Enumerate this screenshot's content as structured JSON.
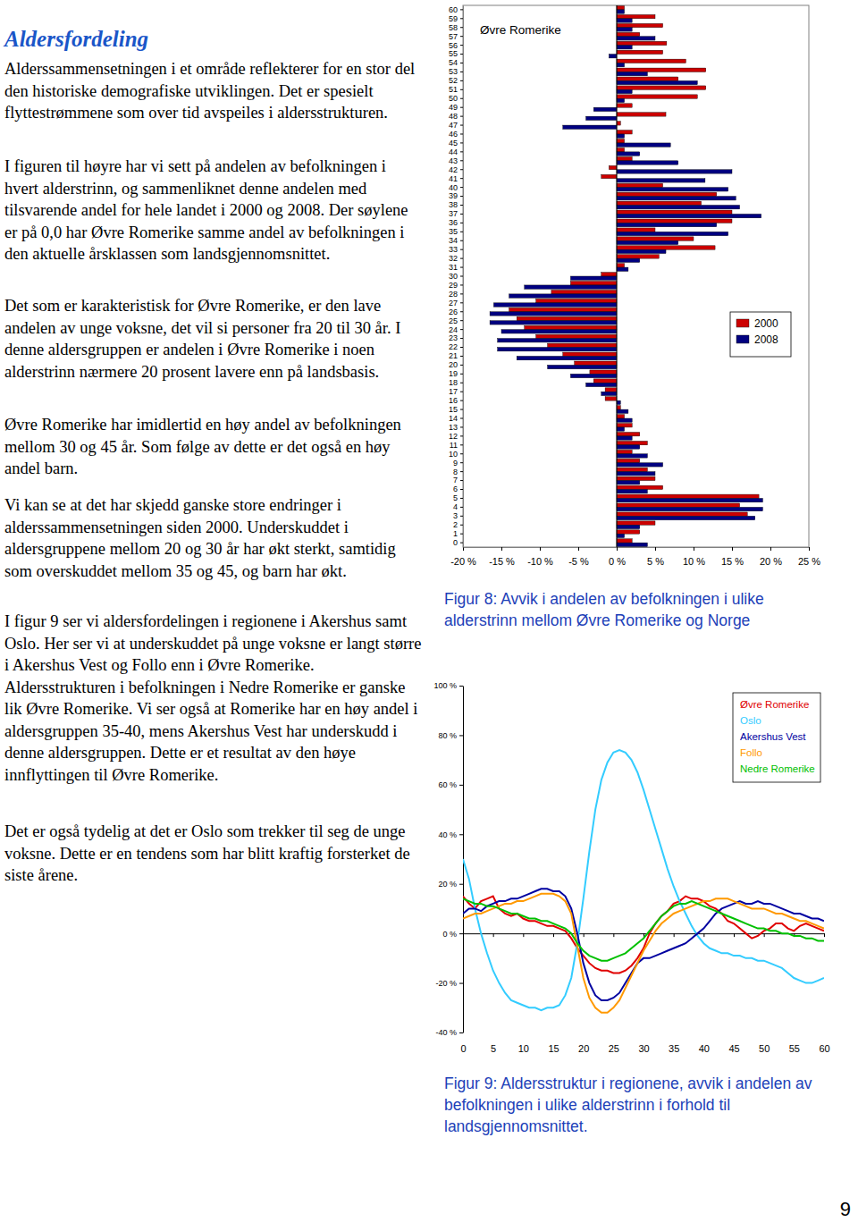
{
  "document": {
    "heading": "Aldersfordeling",
    "paragraphs": [
      "Alderssammensetningen i et område reflekterer for en stor del den historiske demografiske utviklingen. Det er spesielt flyttestrømmene som over tid avspeiles i aldersstrukturen.",
      "I figuren til høyre har vi sett på andelen av befolkningen i hvert alderstrinn, og sammenliknet denne andelen med tilsvarende andel for hele landet i 2000 og 2008. Der søylene er på 0,0 har Øvre Romerike samme andel av befolkningen i den aktuelle årsklassen som landsgjennomsnittet.",
      "Det som er karakteristisk for Øvre Romerike, er den lave andelen av unge voksne, det vil si personer fra 20 til 30 år. I denne aldersgruppen er andelen i Øvre Romerike i noen alderstrinn nærmere 20 prosent lavere enn på landsbasis.",
      "Øvre Romerike har imidlertid en høy andel av befolkningen mellom 30 og 45 år. Som følge av dette er det også en høy andel barn.",
      "Vi kan se at det har skjedd ganske store endringer i alderssammensetningen siden 2000. Underskuddet i aldersgruppene mellom 20 og 30 år har økt sterkt, samtidig som overskuddet mellom 35 og 45, og barn har økt.",
      "I figur 9 ser vi aldersfordelingen i regionene i Akershus samt Oslo. Her ser vi at underskuddet på unge voksne er langt større i Akershus Vest og Follo enn i Øvre Romerike. Aldersstrukturen i befolkningen i Nedre Romerike er ganske lik Øvre Romerike. Vi ser også at Romerike har en høy andel i aldersgruppen 35-40, mens Akershus Vest har underskudd i denne aldersgruppen. Dette er et resultat av den høye innflyttingen til Øvre Romerike.",
      "Det er også tydelig at det er Oslo som trekker til seg de unge voksne. Dette er en tendens som har blitt kraftig forsterket de siste årene."
    ],
    "captions": [
      "Figur 8: Avvik i andelen av befolkningen i ulike alderstrinn mellom Øvre Romerike og Norge",
      "Figur 9: Aldersstruktur i regionene, avvik i andelen av befolkningen i ulike alderstrinn i forhold til landsgjennomsnittet."
    ],
    "page_number": "9"
  },
  "chart_data": [
    {
      "type": "bar",
      "orientation": "horizontal",
      "title": "Øvre Romerike",
      "legend": "right",
      "categories": [
        "0",
        "1",
        "2",
        "3",
        "4",
        "5",
        "6",
        "7",
        "8",
        "9",
        "10",
        "11",
        "12",
        "13",
        "14",
        "15",
        "16",
        "17",
        "18",
        "19",
        "20",
        "21",
        "22",
        "23",
        "24",
        "25",
        "26",
        "27",
        "28",
        "29",
        "30",
        "31",
        "32",
        "33",
        "34",
        "35",
        "36",
        "37",
        "38",
        "39",
        "40",
        "41",
        "42",
        "43",
        "44",
        "45",
        "46",
        "47",
        "48",
        "49",
        "50",
        "51",
        "52",
        "53",
        "54",
        "55",
        "56",
        "57",
        "58",
        "59",
        "60"
      ],
      "series": [
        {
          "name": "2000",
          "color": "#cc0000",
          "values": [
            2,
            3,
            5,
            17,
            16,
            18.5,
            6,
            5,
            4,
            3,
            2,
            4,
            3,
            2,
            1,
            0.5,
            -1.5,
            -1.5,
            -3,
            -3.5,
            -5.5,
            -7,
            -9,
            -10.5,
            -12,
            -13,
            -14,
            -10.5,
            -8.5,
            -6,
            -2,
            1,
            5.5,
            12.8,
            10,
            5,
            15,
            15,
            11,
            13,
            6,
            -2,
            -1,
            2,
            1,
            1,
            2,
            0.5,
            6.4,
            2,
            10.5,
            11.6,
            8,
            11.6,
            9,
            6,
            6.5,
            3,
            6,
            5,
            1
          ]
        },
        {
          "name": "2008",
          "color": "#000080",
          "values": [
            4,
            1,
            3,
            18,
            19,
            19,
            4,
            3,
            5,
            6,
            4,
            3,
            2,
            1,
            2,
            1.5,
            0.5,
            -2,
            -4,
            -6,
            -9,
            -13,
            -15.5,
            -15.5,
            -15,
            -16.5,
            -16.5,
            -16,
            -14,
            -12,
            -6,
            1.5,
            3,
            6.4,
            8,
            14.5,
            13,
            18.8,
            16,
            15.5,
            14.5,
            11.5,
            15,
            8,
            3,
            7,
            1,
            -7,
            -4,
            -3,
            1,
            2,
            10.5,
            4,
            1,
            -1,
            2,
            5,
            2,
            2,
            1
          ]
        }
      ],
      "xlim": [
        -20,
        25
      ],
      "xticks": [
        {
          "value": -20,
          "label": "-20 %"
        },
        {
          "value": -15,
          "label": "-15 %"
        },
        {
          "value": -10,
          "label": "-10 %"
        },
        {
          "value": -5,
          "label": "-5 %"
        },
        {
          "value": 0,
          "label": "0 %"
        },
        {
          "value": 5,
          "label": "5 %"
        },
        {
          "value": 10,
          "label": "10 %"
        },
        {
          "value": 15,
          "label": "15 %"
        },
        {
          "value": 20,
          "label": "20 %"
        },
        {
          "value": 25,
          "label": "25 %"
        }
      ]
    },
    {
      "type": "line",
      "legend": "top-right",
      "x": [
        0,
        1,
        2,
        3,
        4,
        5,
        6,
        7,
        8,
        9,
        10,
        11,
        12,
        13,
        14,
        15,
        16,
        17,
        18,
        19,
        20,
        21,
        22,
        23,
        24,
        25,
        26,
        27,
        28,
        29,
        30,
        31,
        32,
        33,
        34,
        35,
        36,
        37,
        38,
        39,
        40,
        41,
        42,
        43,
        44,
        45,
        46,
        47,
        48,
        49,
        50,
        51,
        52,
        53,
        54,
        55,
        56,
        57,
        58,
        59,
        60
      ],
      "series": [
        {
          "name": "Øvre Romerike",
          "color": "#e00000",
          "values": [
            15,
            12,
            10,
            13,
            14,
            15,
            10,
            8,
            7,
            8,
            6,
            5,
            5,
            4,
            3,
            3,
            2,
            1,
            -2,
            -6,
            -9,
            -12,
            -14,
            -15,
            -15,
            -16,
            -16,
            -15,
            -13,
            -10,
            -6,
            0,
            4,
            7,
            9,
            12,
            13,
            15,
            14,
            14,
            13,
            11,
            10,
            8,
            5,
            4,
            2,
            0,
            -2,
            -1,
            1,
            2,
            4,
            4,
            2,
            1,
            3,
            4,
            3,
            2,
            1
          ]
        },
        {
          "name": "Oslo",
          "color": "#33ccff",
          "values": [
            30,
            22,
            10,
            0,
            -8,
            -15,
            -20,
            -24,
            -27,
            -28,
            -29,
            -30,
            -30,
            -31,
            -30,
            -30,
            -29,
            -25,
            -18,
            -4,
            14,
            33,
            50,
            62,
            69,
            73,
            74,
            73,
            70,
            65,
            58,
            50,
            42,
            34,
            26,
            19,
            13,
            8,
            3,
            -1,
            -4,
            -6,
            -7,
            -8,
            -8,
            -9,
            -9,
            -10,
            -10,
            -11,
            -11,
            -12,
            -13,
            -14,
            -16,
            -18,
            -19,
            -20,
            -20,
            -19,
            -18
          ]
        },
        {
          "name": "Akershus Vest",
          "color": "#0000a0",
          "values": [
            8,
            10,
            10,
            9,
            11,
            12,
            13,
            13,
            14,
            14,
            15,
            16,
            17,
            18,
            18,
            17,
            17,
            15,
            10,
            0,
            -12,
            -20,
            -25,
            -27,
            -27,
            -26,
            -24,
            -20,
            -16,
            -12,
            -10,
            -10,
            -9,
            -8,
            -7,
            -6,
            -5,
            -4,
            -2,
            0,
            2,
            5,
            8,
            10,
            11,
            12,
            13,
            12,
            12,
            13,
            12,
            12,
            11,
            10,
            9,
            8,
            8,
            7,
            6,
            6,
            5
          ]
        },
        {
          "name": "Follo",
          "color": "#ff9900",
          "values": [
            6,
            7,
            8,
            8,
            9,
            10,
            11,
            12,
            12,
            13,
            13,
            14,
            15,
            16,
            16,
            16,
            15,
            13,
            8,
            -5,
            -18,
            -26,
            -30,
            -32,
            -32,
            -30,
            -27,
            -22,
            -17,
            -12,
            -7,
            -3,
            1,
            4,
            6,
            8,
            9,
            10,
            11,
            12,
            13,
            13,
            14,
            14,
            14,
            13,
            12,
            11,
            10,
            10,
            10,
            9,
            8,
            8,
            7,
            6,
            5,
            5,
            4,
            3,
            2
          ]
        },
        {
          "name": "Nedre Romerike",
          "color": "#00c000",
          "values": [
            14,
            13,
            12,
            12,
            11,
            11,
            10,
            9,
            8,
            8,
            7,
            6,
            6,
            5,
            5,
            4,
            3,
            2,
            0,
            -4,
            -7,
            -9,
            -10,
            -11,
            -11,
            -10,
            -9,
            -8,
            -6,
            -4,
            -2,
            1,
            4,
            7,
            9,
            11,
            12,
            12,
            13,
            12,
            11,
            10,
            9,
            8,
            7,
            6,
            5,
            4,
            3,
            2,
            2,
            1,
            1,
            0,
            0,
            -1,
            -1,
            -2,
            -2,
            -3,
            -3
          ]
        }
      ],
      "xlim": [
        0,
        60
      ],
      "xticks": [
        0,
        5,
        10,
        15,
        20,
        25,
        30,
        35,
        40,
        45,
        50,
        55,
        60
      ],
      "ylim": [
        -40,
        100
      ],
      "yticks": [
        {
          "value": -40,
          "label": "-40 %"
        },
        {
          "value": -20,
          "label": "-20 %"
        },
        {
          "value": 0,
          "label": "0 %"
        },
        {
          "value": 20,
          "label": "20 %"
        },
        {
          "value": 40,
          "label": "40 %"
        },
        {
          "value": 60,
          "label": "60 %"
        },
        {
          "value": 80,
          "label": "80 %"
        },
        {
          "value": 100,
          "label": "100 %"
        }
      ]
    }
  ]
}
